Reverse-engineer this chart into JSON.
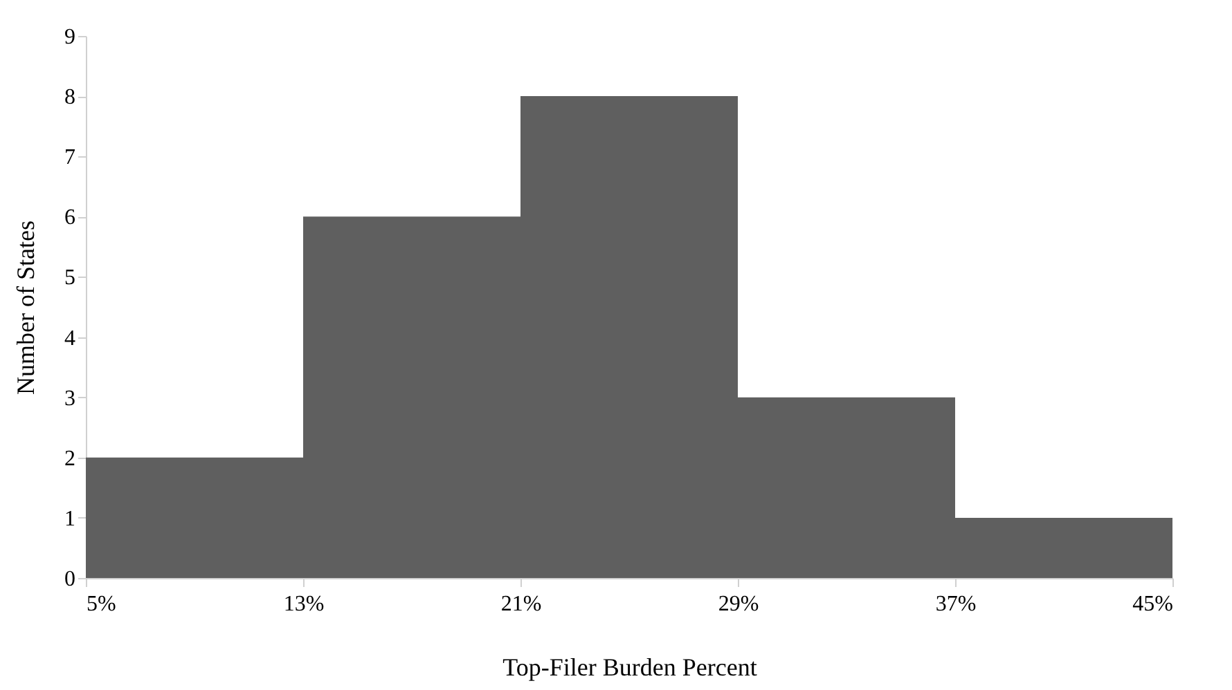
{
  "chart_data": {
    "type": "histogram",
    "xlabel": "Top-Filer Burden Percent",
    "ylabel": "Number of States",
    "bins": [
      5,
      13,
      21,
      29,
      37,
      45
    ],
    "values": [
      2,
      6,
      8,
      3,
      1
    ],
    "color": "#5f5f5f",
    "xlim": [
      5,
      45
    ],
    "xticks": [
      {
        "value": 5,
        "label": "5%"
      },
      {
        "value": 13,
        "label": "13%"
      },
      {
        "value": 21,
        "label": "21%"
      },
      {
        "value": 29,
        "label": "29%"
      },
      {
        "value": 37,
        "label": "37%"
      },
      {
        "value": 45,
        "label": "45%"
      }
    ],
    "ylim": [
      0,
      9
    ],
    "yticks": [
      0,
      1,
      2,
      3,
      4,
      5,
      6,
      7,
      8,
      9
    ]
  }
}
